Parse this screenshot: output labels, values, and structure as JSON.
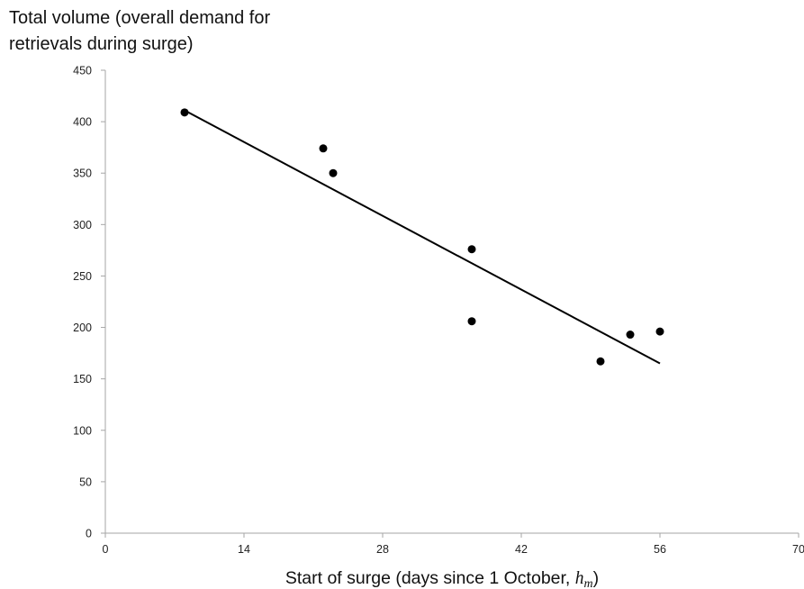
{
  "chart_data": {
    "type": "scatter",
    "title": "",
    "ylabel_lines": [
      "Total volume (overall demand for",
      "retrievals during surge)"
    ],
    "xlabel": {
      "prefix": "Start of surge (days since 1 October, ",
      "math": "h",
      "math_sub": "m",
      "suffix": ")"
    },
    "xlim": [
      0,
      70
    ],
    "ylim": [
      0,
      450
    ],
    "x_ticks": [
      0,
      14,
      28,
      42,
      56,
      70
    ],
    "y_ticks": [
      0,
      50,
      100,
      150,
      200,
      250,
      300,
      350,
      400,
      450
    ],
    "grid": false,
    "points": [
      {
        "x": 8,
        "y": 409
      },
      {
        "x": 22,
        "y": 374
      },
      {
        "x": 23,
        "y": 350
      },
      {
        "x": 37,
        "y": 276
      },
      {
        "x": 37,
        "y": 206
      },
      {
        "x": 50,
        "y": 167
      },
      {
        "x": 53,
        "y": 193
      },
      {
        "x": 56,
        "y": 196
      }
    ],
    "trendline": {
      "x": [
        8,
        56
      ],
      "y": [
        411,
        165
      ]
    },
    "colors": {
      "points": "#000000",
      "trendline": "#000000",
      "axis": "#a6a6a6"
    }
  }
}
